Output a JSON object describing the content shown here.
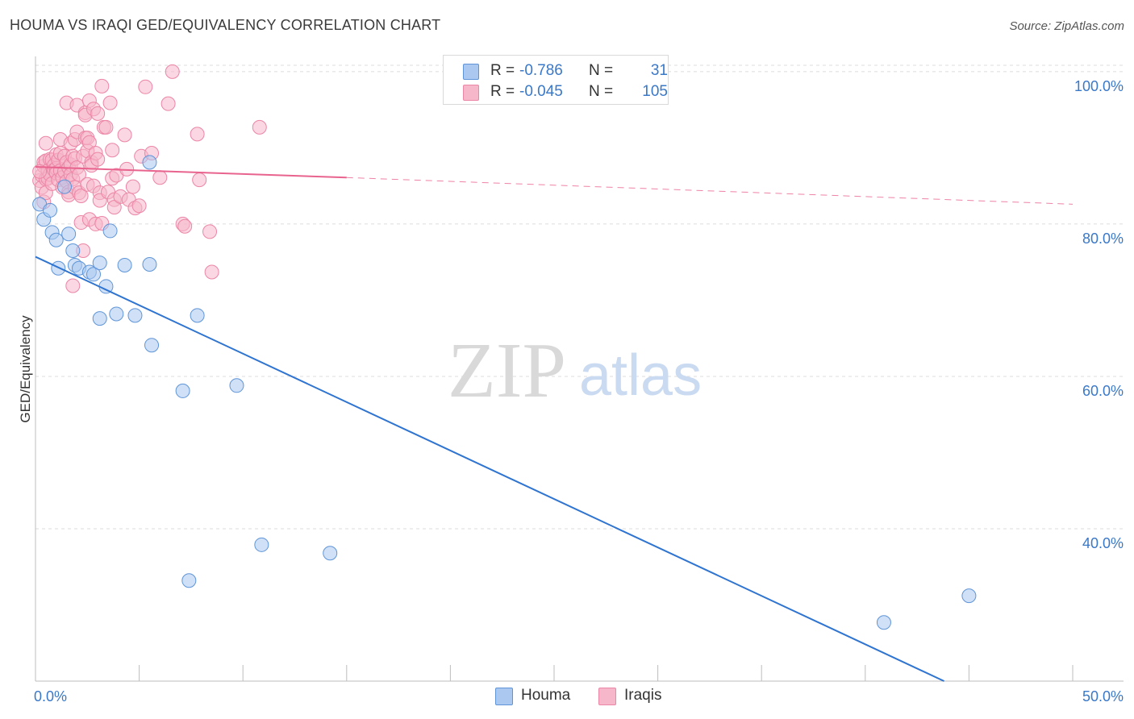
{
  "title": "HOUMA VS IRAQI GED/EQUIVALENCY CORRELATION CHART",
  "source": "Source: ZipAtlas.com",
  "watermark": {
    "zip": "ZIP",
    "atlas": "atlas"
  },
  "colors": {
    "houma_fill": "#aac8f0",
    "houma_stroke": "#5f95d8",
    "houma_line": "#2f74d0",
    "iraqi_fill": "#f6b7cb",
    "iraqi_stroke": "#ec86a6",
    "iraqi_line": "#e8648f",
    "axis_text": "#3a78c8",
    "grid": "#dcdcdc"
  },
  "legend": {
    "rows": [
      {
        "r_label": "R =",
        "r_value": "-0.786",
        "n_label": "N =",
        "n_value": "31"
      },
      {
        "r_label": "R =",
        "r_value": "-0.045",
        "n_label": "N =",
        "n_value": "105"
      }
    ],
    "bottom": [
      "Houma",
      "Iraqis"
    ]
  },
  "chart_data": {
    "type": "scatter",
    "xlabel": "",
    "ylabel": "GED/Equivalency",
    "xlim": [
      0,
      50
    ],
    "ylim": [
      20,
      102
    ],
    "x_tick_labels": [
      {
        "value": 0,
        "label": "0.0%"
      },
      {
        "value": 50,
        "label": "50.0%"
      }
    ],
    "y_tick_labels": [
      {
        "value": 100,
        "label": "100.0%"
      },
      {
        "value": 80,
        "label": "80.0%"
      },
      {
        "value": 60,
        "label": "60.0%"
      },
      {
        "value": 40,
        "label": "40.0%"
      }
    ],
    "grid": true,
    "series": [
      {
        "name": "Houma",
        "points": [
          [
            0.2,
            82.6
          ],
          [
            0.4,
            80.6
          ],
          [
            0.7,
            81.8
          ],
          [
            0.8,
            78.9
          ],
          [
            1.0,
            77.9
          ],
          [
            1.1,
            74.2
          ],
          [
            1.4,
            84.9
          ],
          [
            1.6,
            78.7
          ],
          [
            1.8,
            76.5
          ],
          [
            1.9,
            74.6
          ],
          [
            2.1,
            74.2
          ],
          [
            2.6,
            73.7
          ],
          [
            2.8,
            73.4
          ],
          [
            3.1,
            74.9
          ],
          [
            3.1,
            67.6
          ],
          [
            3.4,
            71.8
          ],
          [
            3.6,
            79.1
          ],
          [
            3.9,
            68.2
          ],
          [
            4.3,
            74.6
          ],
          [
            4.8,
            68.0
          ],
          [
            5.5,
            74.7
          ],
          [
            5.5,
            88.1
          ],
          [
            5.6,
            64.1
          ],
          [
            7.1,
            58.1
          ],
          [
            7.8,
            68.0
          ],
          [
            7.4,
            33.2
          ],
          [
            9.7,
            58.8
          ],
          [
            10.9,
            37.9
          ],
          [
            14.2,
            36.8
          ],
          [
            40.9,
            27.7
          ],
          [
            45.0,
            31.2
          ]
        ]
      },
      {
        "name": "Iraqis",
        "points": [
          [
            0.2,
            85.7
          ],
          [
            0.3,
            84.8
          ],
          [
            0.3,
            86.4
          ],
          [
            0.4,
            87.6
          ],
          [
            0.4,
            88.1
          ],
          [
            0.4,
            82.9
          ],
          [
            0.5,
            84.1
          ],
          [
            0.5,
            85.9
          ],
          [
            0.5,
            88.3
          ],
          [
            0.5,
            90.6
          ],
          [
            0.6,
            87.0
          ],
          [
            0.6,
            86.0
          ],
          [
            0.7,
            88.5
          ],
          [
            0.7,
            86.5
          ],
          [
            0.8,
            88.4
          ],
          [
            0.8,
            85.3
          ],
          [
            0.9,
            87.7
          ],
          [
            0.9,
            87.1
          ],
          [
            1.0,
            89.1
          ],
          [
            1.0,
            87.3
          ],
          [
            1.0,
            86.7
          ],
          [
            1.1,
            88.4
          ],
          [
            1.1,
            85.8
          ],
          [
            1.2,
            91.1
          ],
          [
            1.2,
            89.3
          ],
          [
            1.2,
            87.0
          ],
          [
            1.3,
            86.1
          ],
          [
            1.3,
            84.8
          ],
          [
            1.4,
            88.9
          ],
          [
            1.4,
            86.9
          ],
          [
            1.5,
            95.9
          ],
          [
            1.5,
            88.1
          ],
          [
            1.5,
            85.6
          ],
          [
            1.6,
            87.4
          ],
          [
            1.6,
            84.2
          ],
          [
            1.6,
            83.8
          ],
          [
            1.7,
            87.8
          ],
          [
            1.7,
            86.5
          ],
          [
            1.7,
            90.6
          ],
          [
            1.8,
            88.9
          ],
          [
            1.8,
            85.9
          ],
          [
            1.8,
            71.9
          ],
          [
            1.9,
            91.1
          ],
          [
            1.9,
            88.6
          ],
          [
            1.9,
            84.8
          ],
          [
            2.0,
            95.6
          ],
          [
            2.0,
            92.1
          ],
          [
            2.0,
            87.4
          ],
          [
            2.1,
            86.5
          ],
          [
            2.1,
            84.1
          ],
          [
            2.2,
            83.7
          ],
          [
            2.2,
            80.2
          ],
          [
            2.3,
            88.9
          ],
          [
            2.3,
            76.5
          ],
          [
            2.4,
            94.6
          ],
          [
            2.4,
            94.3
          ],
          [
            2.4,
            91.3
          ],
          [
            2.5,
            89.6
          ],
          [
            2.5,
            91.3
          ],
          [
            2.5,
            85.2
          ],
          [
            2.6,
            96.2
          ],
          [
            2.6,
            90.7
          ],
          [
            2.6,
            80.6
          ],
          [
            2.7,
            88.1
          ],
          [
            2.7,
            87.7
          ],
          [
            2.8,
            95.1
          ],
          [
            2.8,
            85.0
          ],
          [
            2.9,
            89.3
          ],
          [
            2.9,
            80.0
          ],
          [
            3.0,
            94.5
          ],
          [
            3.0,
            88.5
          ],
          [
            3.1,
            84.1
          ],
          [
            3.1,
            83.1
          ],
          [
            3.2,
            98.1
          ],
          [
            3.2,
            80.1
          ],
          [
            3.3,
            92.7
          ],
          [
            3.4,
            92.7
          ],
          [
            3.5,
            84.2
          ],
          [
            3.6,
            95.9
          ],
          [
            3.7,
            89.7
          ],
          [
            3.7,
            86.0
          ],
          [
            3.8,
            83.2
          ],
          [
            3.8,
            82.2
          ],
          [
            3.9,
            86.4
          ],
          [
            4.1,
            83.6
          ],
          [
            4.3,
            91.7
          ],
          [
            4.4,
            87.2
          ],
          [
            4.5,
            83.2
          ],
          [
            4.7,
            84.9
          ],
          [
            4.8,
            82.1
          ],
          [
            5.0,
            82.4
          ],
          [
            5.1,
            88.9
          ],
          [
            5.3,
            98.0
          ],
          [
            5.6,
            89.3
          ],
          [
            6.0,
            86.1
          ],
          [
            6.4,
            95.8
          ],
          [
            6.6,
            100.0
          ],
          [
            7.1,
            80.0
          ],
          [
            7.2,
            79.7
          ],
          [
            7.8,
            91.8
          ],
          [
            7.9,
            85.8
          ],
          [
            8.4,
            79.0
          ],
          [
            8.5,
            73.7
          ],
          [
            10.8,
            92.7
          ],
          [
            0.2,
            86.9
          ]
        ]
      }
    ],
    "trend_lines": [
      {
        "series": "Houma",
        "x": [
          0,
          43.8
        ],
        "y": [
          75.7,
          20
        ],
        "style": "solid"
      },
      {
        "series": "Iraqis",
        "x": [
          0,
          15
        ],
        "y": [
          87.5,
          86.1
        ],
        "style": "solid"
      },
      {
        "series": "Iraqis",
        "x": [
          15,
          50
        ],
        "y": [
          86.1,
          82.6
        ],
        "style": "dashed"
      }
    ]
  }
}
